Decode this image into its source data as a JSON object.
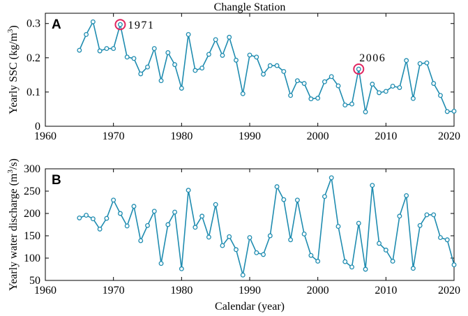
{
  "chart_data": [
    {
      "type": "line",
      "panel_label": "A",
      "title": "Changle Station",
      "ylabel_prefix": "Yearly SSC (kg/m",
      "ylabel_sup": "3",
      "ylabel_suffix": ")",
      "xlabel": "",
      "xlim": [
        1960,
        2020
      ],
      "ylim": [
        0,
        0.33
      ],
      "xticks": [
        1960,
        1970,
        1980,
        1990,
        2000,
        2010,
        2020
      ],
      "yticks": [
        0,
        0.1,
        0.2,
        0.3
      ],
      "ytick_labels": [
        "0",
        "0.1",
        "0.2",
        "0.3"
      ],
      "series_color": "#1f8cb0",
      "highlight_color": "#e0245e",
      "annotations": [
        {
          "year": 1971,
          "value": 0.297,
          "label": "1971"
        },
        {
          "year": 2006,
          "value": 0.167,
          "label": "2006"
        }
      ],
      "x": [
        1965,
        1966,
        1967,
        1968,
        1969,
        1970,
        1971,
        1972,
        1973,
        1974,
        1975,
        1976,
        1977,
        1978,
        1979,
        1980,
        1981,
        1982,
        1983,
        1984,
        1985,
        1986,
        1987,
        1988,
        1989,
        1990,
        1991,
        1992,
        1993,
        1994,
        1995,
        1996,
        1997,
        1998,
        1999,
        2000,
        2001,
        2002,
        2003,
        2004,
        2005,
        2006,
        2007,
        2008,
        2009,
        2010,
        2011,
        2012,
        2013,
        2014,
        2015,
        2016,
        2017,
        2018,
        2019,
        2020
      ],
      "values": [
        0.222,
        0.268,
        0.305,
        0.22,
        0.227,
        0.227,
        0.297,
        0.202,
        0.198,
        0.153,
        0.173,
        0.227,
        0.133,
        0.215,
        0.18,
        0.111,
        0.268,
        0.163,
        0.17,
        0.21,
        0.253,
        0.207,
        0.26,
        0.193,
        0.095,
        0.208,
        0.202,
        0.152,
        0.177,
        0.177,
        0.16,
        0.09,
        0.133,
        0.125,
        0.08,
        0.082,
        0.13,
        0.145,
        0.118,
        0.062,
        0.065,
        0.167,
        0.042,
        0.123,
        0.098,
        0.102,
        0.117,
        0.113,
        0.192,
        0.081,
        0.183,
        0.185,
        0.125,
        0.09,
        0.043,
        0.044
      ]
    },
    {
      "type": "line",
      "panel_label": "B",
      "title": "",
      "ylabel_prefix": "Yearly water discharge (m",
      "ylabel_sup": "3",
      "ylabel_suffix": "/s)",
      "xlabel": "Calendar (year)",
      "xlim": [
        1960,
        2020
      ],
      "ylim": [
        50,
        300
      ],
      "xticks": [
        1960,
        1970,
        1980,
        1990,
        2000,
        2010,
        2020
      ],
      "yticks": [
        50,
        100,
        150,
        200,
        250,
        300
      ],
      "ytick_labels": [
        "50",
        "100",
        "150",
        "200",
        "250",
        "300"
      ],
      "series_color": "#1f8cb0",
      "x": [
        1965,
        1966,
        1967,
        1968,
        1969,
        1970,
        1971,
        1972,
        1973,
        1974,
        1975,
        1976,
        1977,
        1978,
        1979,
        1980,
        1981,
        1982,
        1983,
        1984,
        1985,
        1986,
        1987,
        1988,
        1989,
        1990,
        1991,
        1992,
        1993,
        1994,
        1995,
        1996,
        1997,
        1998,
        1999,
        2000,
        2001,
        2002,
        2003,
        2004,
        2005,
        2006,
        2007,
        2008,
        2009,
        2010,
        2011,
        2012,
        2013,
        2014,
        2015,
        2016,
        2017,
        2018,
        2019,
        2020
      ],
      "values": [
        190,
        196,
        188,
        165,
        189,
        230,
        200,
        172,
        216,
        139,
        173,
        205,
        88,
        175,
        203,
        76,
        252,
        169,
        194,
        147,
        220,
        128,
        148,
        119,
        62,
        146,
        112,
        108,
        150,
        260,
        231,
        141,
        230,
        154,
        106,
        93,
        238,
        280,
        171,
        92,
        80,
        178,
        75,
        263,
        133,
        118,
        93,
        194,
        240,
        77,
        173,
        197,
        197,
        146,
        141,
        85
      ]
    }
  ]
}
